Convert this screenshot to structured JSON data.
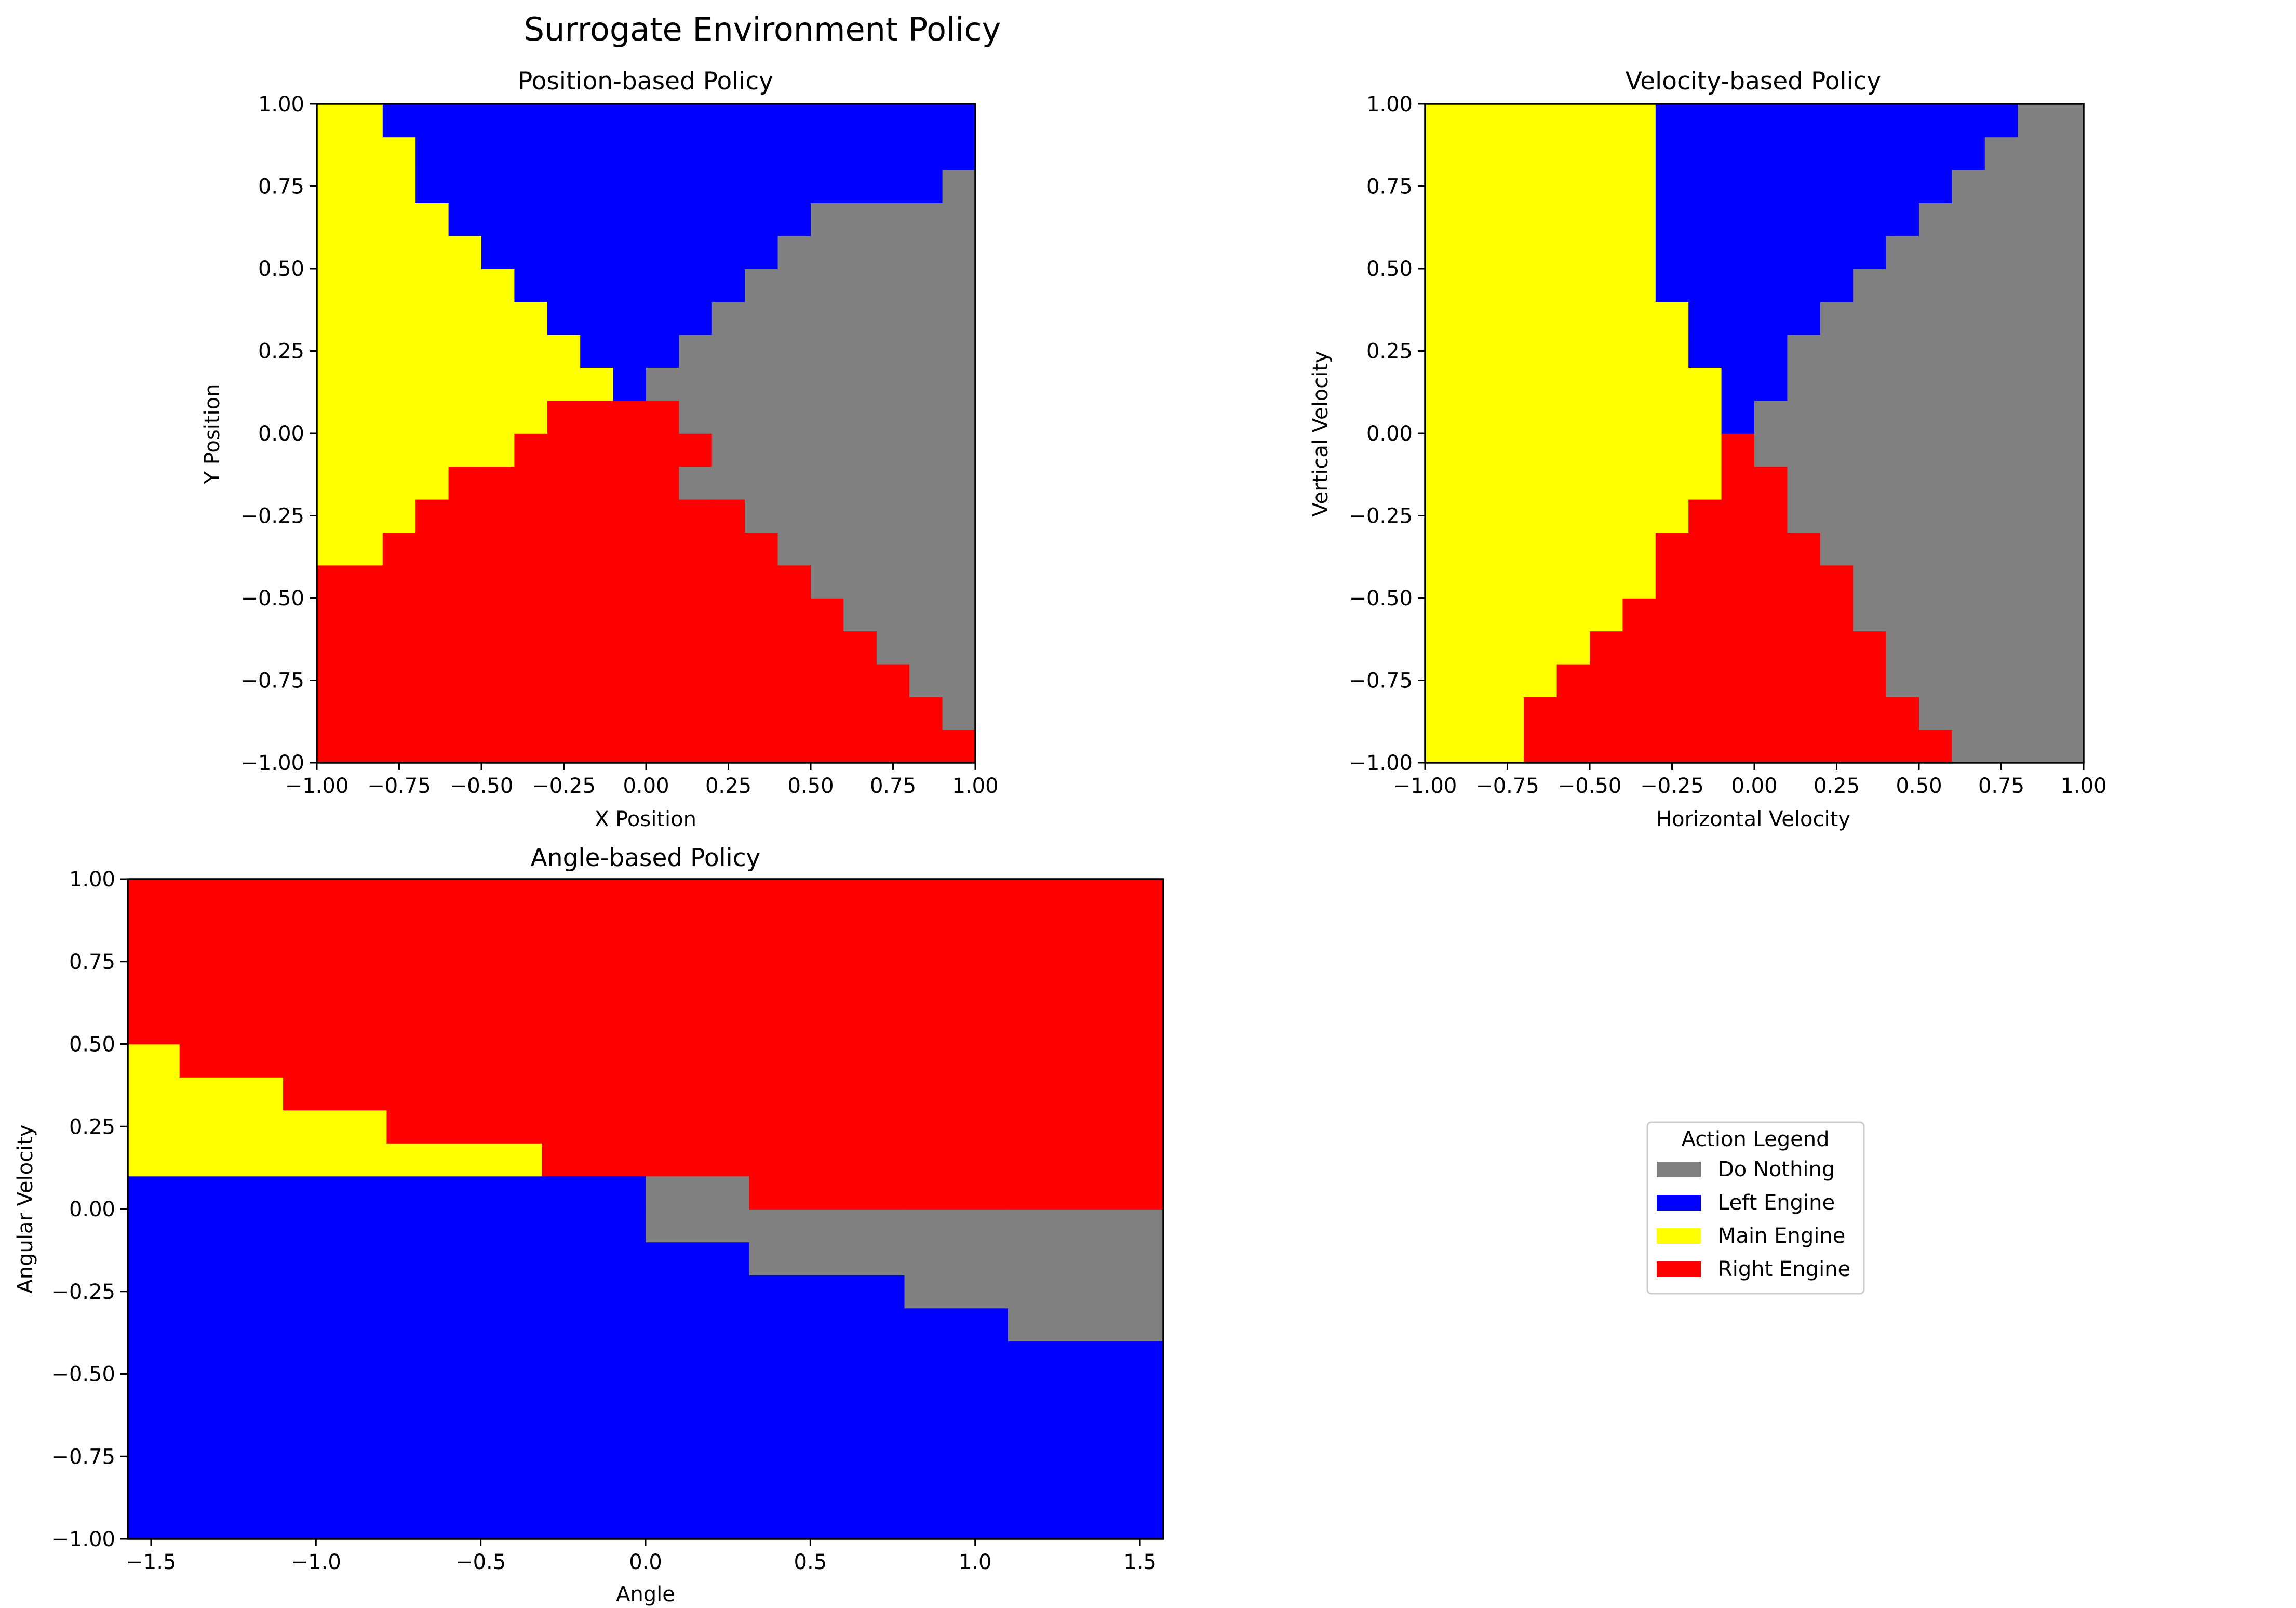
{
  "figure": {
    "title": "Surrogate Environment Policy"
  },
  "legend": {
    "title": "Action Legend",
    "placement": "center-right",
    "entries": [
      {
        "label": "Do Nothing",
        "color": "#808080"
      },
      {
        "label": "Left Engine",
        "color": "#0000ff"
      },
      {
        "label": "Main Engine",
        "color": "#ffff00"
      },
      {
        "label": "Right Engine",
        "color": "#ff0000"
      }
    ]
  },
  "chart_data": [
    {
      "type": "heatmap",
      "title": "Position-based Policy",
      "xlabel": "X Position",
      "ylabel": "Y Position",
      "xlim": [
        -1.0,
        1.0
      ],
      "ylim": [
        -1.0,
        1.0
      ],
      "xticks": [
        "−1.00",
        "−0.75",
        "−0.50",
        "−0.25",
        "0.00",
        "0.25",
        "0.50",
        "0.75",
        "1.00"
      ],
      "yticks": [
        "−1.00",
        "−0.75",
        "−0.50",
        "−0.25",
        "0.00",
        "0.25",
        "0.50",
        "0.75",
        "1.00"
      ],
      "xtick_values": [
        -1.0,
        -0.75,
        -0.5,
        -0.25,
        0.0,
        0.25,
        0.5,
        0.75,
        1.0
      ],
      "ytick_values": [
        -1.0,
        -0.75,
        -0.5,
        -0.25,
        0.0,
        0.25,
        0.5,
        0.75,
        1.0
      ],
      "x_edges": [
        -1.0,
        -0.9,
        -0.8,
        -0.7,
        -0.6,
        -0.5,
        -0.4,
        -0.3,
        -0.2,
        -0.1,
        0.0,
        0.1,
        0.2,
        0.3,
        0.4,
        0.5,
        0.6,
        0.7,
        0.8,
        0.9,
        1.0
      ],
      "y_edges": [
        -1.0,
        -0.9,
        -0.8,
        -0.7,
        -0.6,
        -0.5,
        -0.4,
        -0.3,
        -0.2,
        -0.1,
        0.0,
        0.1,
        0.2,
        0.3,
        0.4,
        0.5,
        0.6,
        0.7,
        0.8,
        0.9,
        1.0
      ],
      "grid": false,
      "rows": [
        "RRRRRRRRRRRRRRRRRRRR",
        "RRRRRRRRRRRRRRRRRRRG",
        "RRRRRRRRRRRRRRRRRRGG",
        "RRRRRRRRRRRRRRRRRGGG",
        "RRRRRRRRRRRRRRRRGGGG",
        "RRRRRRRRRRRRRRRGGGGG",
        "YYRRRRRRRRRRRRGGGGGG",
        "YYYRRRRRRRRRRGGGGGGG",
        "YYYYRRRRRRRGGGGGGGGG",
        "YYYYYYRRRRRRGGGGGGGG",
        "YYYYYYYRRRRGGGGGGGGG",
        "YYYYYYYYYBGGGGGGGGGG",
        "YYYYYYYYBBBGGGGGGGGG",
        "YYYYYYYBBBBBGGGGGGGG",
        "YYYYYYBBBBBBBGGGGGGG",
        "YYYYYBBBBBBBBBGGGGGG",
        "YYYYBBBBBBBBBBBGGGGG",
        "YYYBBBBBBBBBBBBBBBBG",
        "YYYBBBBBBBBBBBBBBBBB",
        "YYBBBBBBBBBBBBBBBBBB"
      ]
    },
    {
      "type": "heatmap",
      "title": "Velocity-based Policy",
      "xlabel": "Horizontal Velocity",
      "ylabel": "Vertical Velocity",
      "xlim": [
        -1.0,
        1.0
      ],
      "ylim": [
        -1.0,
        1.0
      ],
      "xticks": [
        "−1.00",
        "−0.75",
        "−0.50",
        "−0.25",
        "0.00",
        "0.25",
        "0.50",
        "0.75",
        "1.00"
      ],
      "yticks": [
        "−1.00",
        "−0.75",
        "−0.50",
        "−0.25",
        "0.00",
        "0.25",
        "0.50",
        "0.75",
        "1.00"
      ],
      "xtick_values": [
        -1.0,
        -0.75,
        -0.5,
        -0.25,
        0.0,
        0.25,
        0.5,
        0.75,
        1.0
      ],
      "ytick_values": [
        -1.0,
        -0.75,
        -0.5,
        -0.25,
        0.0,
        0.25,
        0.5,
        0.75,
        1.0
      ],
      "x_edges": [
        -1.0,
        -0.9,
        -0.8,
        -0.7,
        -0.6,
        -0.5,
        -0.4,
        -0.3,
        -0.2,
        -0.1,
        0.0,
        0.1,
        0.2,
        0.3,
        0.4,
        0.5,
        0.6,
        0.7,
        0.8,
        0.9,
        1.0
      ],
      "y_edges": [
        -1.0,
        -0.9,
        -0.8,
        -0.7,
        -0.6,
        -0.5,
        -0.4,
        -0.3,
        -0.2,
        -0.1,
        0.0,
        0.1,
        0.2,
        0.3,
        0.4,
        0.5,
        0.6,
        0.7,
        0.8,
        0.9,
        1.0
      ],
      "grid": false,
      "rows": [
        "YYYRRRRRRRRRRRRRGGGG",
        "YYYRRRRRRRRRRRRGGGGG",
        "YYYYRRRRRRRRRRGGGGGG",
        "YYYYYRRRRRRRRRGGGGGG",
        "YYYYYYRRRRRRRGGGGGGG",
        "YYYYYYYRRRRRRGGGGGGG",
        "YYYYYYYRRRRRGGGGGGGG",
        "YYYYYYYYRRRGGGGGGGGG",
        "YYYYYYYYYRRGGGGGGGGG",
        "YYYYYYYYYRGGGGGGGGGG",
        "YYYYYYYYYBGGGGGGGGGG",
        "YYYYYYYYYBBGGGGGGGGG",
        "YYYYYYYYBBBGGGGGGGGG",
        "YYYYYYYYBBBBGGGGGGGG",
        "YYYYYYYBBBBBBGGGGGGG",
        "YYYYYYYBBBBBBBGGGGGG",
        "YYYYYYYBBBBBBBBGGGGG",
        "YYYYYYYBBBBBBBBBGGGG",
        "YYYYYYYBBBBBBBBBBGGG",
        "YYYYYYYBBBBBBBBBBBGG"
      ]
    },
    {
      "type": "heatmap",
      "title": "Angle-based Policy",
      "xlabel": "Angle",
      "ylabel": "Angular Velocity",
      "xlim": [
        -1.5708,
        1.5708
      ],
      "ylim": [
        -1.0,
        1.0
      ],
      "xticks": [
        "−1.5",
        "−1.0",
        "−0.5",
        "0.0",
        "0.5",
        "1.0",
        "1.5"
      ],
      "yticks": [
        "−1.00",
        "−0.75",
        "−0.50",
        "−0.25",
        "0.00",
        "0.25",
        "0.50",
        "0.75",
        "1.00"
      ],
      "xtick_values": [
        -1.5,
        -1.0,
        -0.5,
        0.0,
        0.5,
        1.0,
        1.5
      ],
      "ytick_values": [
        -1.0,
        -0.75,
        -0.5,
        -0.25,
        0.0,
        0.25,
        0.5,
        0.75,
        1.0
      ],
      "x_edges": [
        -1.5708,
        -1.4137,
        -1.0996,
        -0.7854,
        -0.3142,
        0.0,
        0.3142,
        0.7854,
        1.0996,
        1.5708
      ],
      "y_edges": [
        -1.0,
        -0.9,
        -0.8,
        -0.7,
        -0.6,
        -0.5,
        -0.4,
        -0.3,
        -0.2,
        -0.1,
        0.0,
        0.1,
        0.2,
        0.3,
        0.4,
        0.5,
        0.6,
        0.7,
        0.8,
        0.9,
        1.0
      ],
      "grid": false,
      "rows": [
        "BBBBBBBBB",
        "BBBBBBBBB",
        "BBBBBBBBB",
        "BBBBBBBBB",
        "BBBBBBBBB",
        "BBBBBBBBB",
        "BBBBBBBBG",
        "BBBBBBBGG",
        "BBBBBBGGG",
        "BBBBBGGGG",
        "BBBBBGRRR",
        "YYYYRRRRR",
        "YYYRRRRRR",
        "YYRRRRRRR",
        "YRRRRRRRR",
        "RRRRRRRRR",
        "RRRRRRRRR",
        "RRRRRRRRR",
        "RRRRRRRRR",
        "RRRRRRRRR"
      ]
    }
  ],
  "action_codes": {
    "G": {
      "color": "#808080"
    },
    "B": {
      "color": "#0000ff"
    },
    "Y": {
      "color": "#ffff00"
    },
    "R": {
      "color": "#ff0000"
    }
  }
}
